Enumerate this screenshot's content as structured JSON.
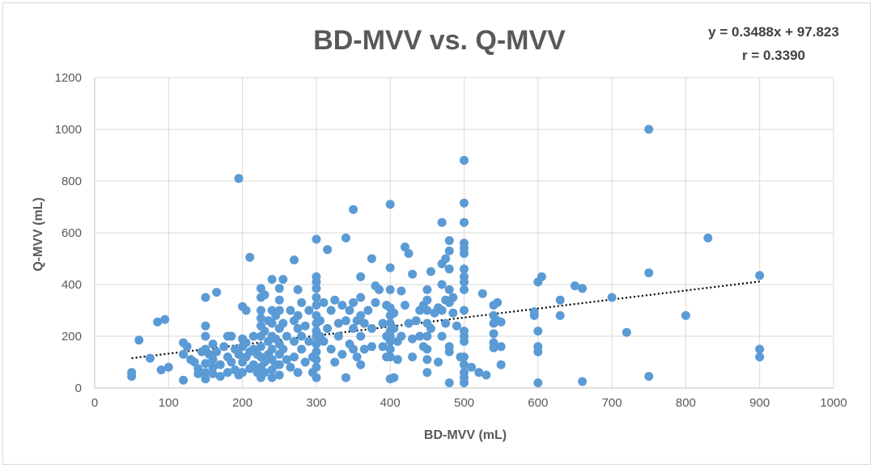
{
  "chart_data": {
    "type": "scatter",
    "title": "BD-MVV vs. Q-MVV",
    "xlabel": "BD-MVV (mL)",
    "ylabel": "Q-MVV (mL)",
    "xlim": [
      0,
      1000
    ],
    "ylim": [
      0,
      1200
    ],
    "x_ticks": [
      "0",
      "100",
      "200",
      "300",
      "400",
      "500",
      "600",
      "700",
      "800",
      "900",
      "1000"
    ],
    "y_ticks": [
      "0",
      "200",
      "400",
      "600",
      "800",
      "1000",
      "1200"
    ],
    "grid": true,
    "marker_color": "#5b9bd5",
    "trendline": {
      "style": "dotted",
      "slope": 0.3488,
      "intercept": 97.823,
      "x_range": [
        50,
        900
      ],
      "equation_text": "y = 0.3488x + 97.823",
      "r_text": "r = 0.3390"
    },
    "points": [
      [
        50,
        60
      ],
      [
        50,
        45
      ],
      [
        60,
        185
      ],
      [
        75,
        115
      ],
      [
        85,
        255
      ],
      [
        90,
        70
      ],
      [
        95,
        265
      ],
      [
        100,
        80
      ],
      [
        120,
        175
      ],
      [
        120,
        130
      ],
      [
        120,
        30
      ],
      [
        125,
        160
      ],
      [
        130,
        110
      ],
      [
        135,
        100
      ],
      [
        140,
        55
      ],
      [
        140,
        75
      ],
      [
        145,
        140
      ],
      [
        150,
        350
      ],
      [
        150,
        240
      ],
      [
        150,
        200
      ],
      [
        150,
        150
      ],
      [
        150,
        95
      ],
      [
        150,
        60
      ],
      [
        150,
        35
      ],
      [
        155,
        130
      ],
      [
        160,
        170
      ],
      [
        160,
        110
      ],
      [
        160,
        80
      ],
      [
        160,
        55
      ],
      [
        165,
        370
      ],
      [
        165,
        140
      ],
      [
        170,
        90
      ],
      [
        170,
        45
      ],
      [
        175,
        160
      ],
      [
        180,
        200
      ],
      [
        180,
        120
      ],
      [
        180,
        60
      ],
      [
        185,
        200
      ],
      [
        185,
        100
      ],
      [
        190,
        150
      ],
      [
        190,
        70
      ],
      [
        195,
        810
      ],
      [
        195,
        130
      ],
      [
        195,
        50
      ],
      [
        200,
        315
      ],
      [
        200,
        190
      ],
      [
        200,
        160
      ],
      [
        200,
        100
      ],
      [
        200,
        60
      ],
      [
        205,
        300
      ],
      [
        205,
        175
      ],
      [
        205,
        120
      ],
      [
        210,
        505
      ],
      [
        210,
        140
      ],
      [
        210,
        75
      ],
      [
        215,
        200
      ],
      [
        215,
        150
      ],
      [
        215,
        90
      ],
      [
        220,
        130
      ],
      [
        220,
        60
      ],
      [
        225,
        385
      ],
      [
        225,
        350
      ],
      [
        225,
        300
      ],
      [
        225,
        270
      ],
      [
        225,
        240
      ],
      [
        225,
        200
      ],
      [
        225,
        160
      ],
      [
        225,
        120
      ],
      [
        225,
        80
      ],
      [
        225,
        40
      ],
      [
        230,
        360
      ],
      [
        230,
        220
      ],
      [
        230,
        100
      ],
      [
        230,
        60
      ],
      [
        235,
        260
      ],
      [
        235,
        180
      ],
      [
        235,
        130
      ],
      [
        240,
        420
      ],
      [
        240,
        300
      ],
      [
        240,
        250
      ],
      [
        240,
        200
      ],
      [
        240,
        150
      ],
      [
        240,
        110
      ],
      [
        240,
        70
      ],
      [
        240,
        40
      ],
      [
        245,
        280
      ],
      [
        245,
        190
      ],
      [
        245,
        90
      ],
      [
        250,
        385
      ],
      [
        250,
        340
      ],
      [
        250,
        300
      ],
      [
        250,
        230
      ],
      [
        250,
        170
      ],
      [
        250,
        130
      ],
      [
        250,
        90
      ],
      [
        250,
        50
      ],
      [
        255,
        420
      ],
      [
        255,
        250
      ],
      [
        255,
        150
      ],
      [
        260,
        200
      ],
      [
        260,
        110
      ],
      [
        265,
        300
      ],
      [
        265,
        80
      ],
      [
        270,
        495
      ],
      [
        270,
        260
      ],
      [
        270,
        180
      ],
      [
        270,
        120
      ],
      [
        275,
        380
      ],
      [
        275,
        280
      ],
      [
        275,
        230
      ],
      [
        275,
        60
      ],
      [
        280,
        330
      ],
      [
        280,
        200
      ],
      [
        280,
        150
      ],
      [
        285,
        240
      ],
      [
        285,
        100
      ],
      [
        290,
        300
      ],
      [
        290,
        180
      ],
      [
        295,
        120
      ],
      [
        295,
        60
      ],
      [
        300,
        575
      ],
      [
        300,
        430
      ],
      [
        300,
        410
      ],
      [
        300,
        385
      ],
      [
        300,
        350
      ],
      [
        300,
        320
      ],
      [
        300,
        280
      ],
      [
        300,
        250
      ],
      [
        300,
        220
      ],
      [
        300,
        200
      ],
      [
        300,
        170
      ],
      [
        300,
        140
      ],
      [
        300,
        110
      ],
      [
        300,
        80
      ],
      [
        300,
        40
      ],
      [
        305,
        260
      ],
      [
        305,
        200
      ],
      [
        310,
        330
      ],
      [
        310,
        180
      ],
      [
        315,
        535
      ],
      [
        315,
        230
      ],
      [
        320,
        300
      ],
      [
        320,
        150
      ],
      [
        325,
        340
      ],
      [
        325,
        100
      ],
      [
        330,
        250
      ],
      [
        330,
        200
      ],
      [
        335,
        320
      ],
      [
        335,
        130
      ],
      [
        340,
        580
      ],
      [
        340,
        260
      ],
      [
        340,
        40
      ],
      [
        345,
        300
      ],
      [
        345,
        170
      ],
      [
        350,
        690
      ],
      [
        350,
        330
      ],
      [
        350,
        230
      ],
      [
        350,
        150
      ],
      [
        355,
        260
      ],
      [
        355,
        120
      ],
      [
        360,
        430
      ],
      [
        360,
        350
      ],
      [
        360,
        280
      ],
      [
        360,
        200
      ],
      [
        360,
        90
      ],
      [
        365,
        250
      ],
      [
        365,
        150
      ],
      [
        370,
        300
      ],
      [
        375,
        500
      ],
      [
        375,
        230
      ],
      [
        375,
        160
      ],
      [
        380,
        395
      ],
      [
        380,
        330
      ],
      [
        385,
        380
      ],
      [
        390,
        250
      ],
      [
        390,
        160
      ],
      [
        395,
        320
      ],
      [
        395,
        200
      ],
      [
        395,
        120
      ],
      [
        400,
        710
      ],
      [
        400,
        465
      ],
      [
        400,
        380
      ],
      [
        400,
        310
      ],
      [
        400,
        280
      ],
      [
        400,
        250
      ],
      [
        400,
        220
      ],
      [
        400,
        200
      ],
      [
        400,
        180
      ],
      [
        400,
        150
      ],
      [
        400,
        120
      ],
      [
        400,
        35
      ],
      [
        405,
        290
      ],
      [
        405,
        230
      ],
      [
        405,
        40
      ],
      [
        410,
        180
      ],
      [
        410,
        110
      ],
      [
        415,
        375
      ],
      [
        415,
        200
      ],
      [
        420,
        545
      ],
      [
        420,
        320
      ],
      [
        425,
        520
      ],
      [
        425,
        250
      ],
      [
        430,
        440
      ],
      [
        430,
        190
      ],
      [
        430,
        120
      ],
      [
        435,
        260
      ],
      [
        440,
        300
      ],
      [
        440,
        200
      ],
      [
        445,
        320
      ],
      [
        445,
        160
      ],
      [
        450,
        380
      ],
      [
        450,
        340
      ],
      [
        450,
        300
      ],
      [
        450,
        250
      ],
      [
        450,
        200
      ],
      [
        450,
        150
      ],
      [
        450,
        110
      ],
      [
        450,
        60
      ],
      [
        455,
        450
      ],
      [
        455,
        230
      ],
      [
        460,
        290
      ],
      [
        465,
        310
      ],
      [
        465,
        100
      ],
      [
        470,
        640
      ],
      [
        470,
        480
      ],
      [
        470,
        400
      ],
      [
        470,
        300
      ],
      [
        470,
        200
      ],
      [
        475,
        500
      ],
      [
        475,
        340
      ],
      [
        475,
        250
      ],
      [
        480,
        570
      ],
      [
        480,
        530
      ],
      [
        480,
        460
      ],
      [
        480,
        380
      ],
      [
        480,
        330
      ],
      [
        480,
        160
      ],
      [
        480,
        140
      ],
      [
        480,
        20
      ],
      [
        485,
        350
      ],
      [
        485,
        290
      ],
      [
        490,
        240
      ],
      [
        495,
        120
      ],
      [
        500,
        880
      ],
      [
        500,
        715
      ],
      [
        500,
        640
      ],
      [
        500,
        560
      ],
      [
        500,
        540
      ],
      [
        500,
        520
      ],
      [
        500,
        460
      ],
      [
        500,
        430
      ],
      [
        500,
        410
      ],
      [
        500,
        380
      ],
      [
        500,
        300
      ],
      [
        500,
        220
      ],
      [
        500,
        200
      ],
      [
        500,
        180
      ],
      [
        500,
        120
      ],
      [
        500,
        90
      ],
      [
        500,
        60
      ],
      [
        500,
        40
      ],
      [
        500,
        20
      ],
      [
        510,
        80
      ],
      [
        520,
        60
      ],
      [
        525,
        365
      ],
      [
        530,
        50
      ],
      [
        540,
        320
      ],
      [
        540,
        280
      ],
      [
        540,
        250
      ],
      [
        540,
        210
      ],
      [
        540,
        175
      ],
      [
        540,
        155
      ],
      [
        545,
        330
      ],
      [
        545,
        260
      ],
      [
        550,
        255
      ],
      [
        550,
        160
      ],
      [
        550,
        90
      ],
      [
        595,
        295
      ],
      [
        595,
        280
      ],
      [
        600,
        410
      ],
      [
        600,
        220
      ],
      [
        600,
        160
      ],
      [
        600,
        140
      ],
      [
        600,
        20
      ],
      [
        605,
        430
      ],
      [
        630,
        340
      ],
      [
        630,
        280
      ],
      [
        650,
        395
      ],
      [
        660,
        385
      ],
      [
        660,
        25
      ],
      [
        700,
        350
      ],
      [
        720,
        215
      ],
      [
        750,
        1000
      ],
      [
        750,
        445
      ],
      [
        750,
        45
      ],
      [
        800,
        280
      ],
      [
        830,
        580
      ],
      [
        900,
        435
      ],
      [
        900,
        150
      ],
      [
        900,
        120
      ]
    ]
  }
}
